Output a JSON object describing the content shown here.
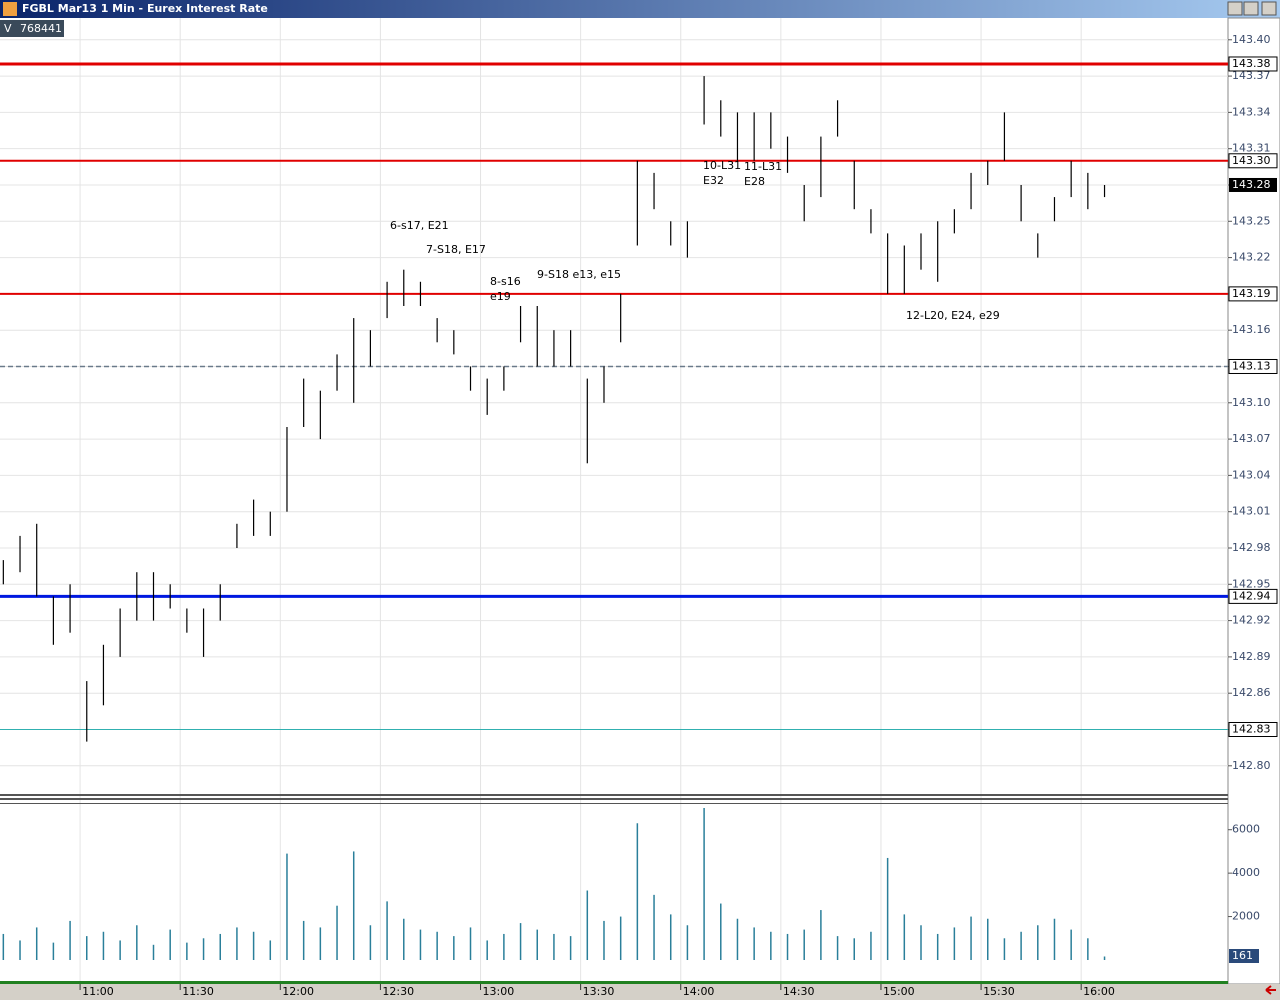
{
  "window_title": "FGBL Mar13 1 Min - Eurex Interest Rate",
  "header": {
    "label": "V",
    "value": 768441
  },
  "chart_data": [
    {
      "type": "ohlc",
      "x": [
        "10:37",
        "10:42",
        "10:47",
        "10:52",
        "10:57",
        "11:02",
        "11:07",
        "11:12",
        "11:17",
        "11:22",
        "11:27",
        "11:32",
        "11:37",
        "11:42",
        "11:47",
        "11:52",
        "11:57",
        "12:02",
        "12:07",
        "12:12",
        "12:17",
        "12:22",
        "12:27",
        "12:32",
        "12:37",
        "12:42",
        "12:47",
        "12:52",
        "12:57",
        "13:02",
        "13:07",
        "13:12",
        "13:17",
        "13:22",
        "13:27",
        "13:32",
        "13:37",
        "13:42",
        "13:47",
        "13:52",
        "13:57",
        "14:02",
        "14:07",
        "14:12",
        "14:17",
        "14:22",
        "14:27",
        "14:32",
        "14:37",
        "14:42",
        "14:47",
        "14:52",
        "14:57",
        "15:02",
        "15:07",
        "15:12",
        "15:17",
        "15:22",
        "15:27",
        "15:32",
        "15:37",
        "15:42",
        "15:47",
        "15:52",
        "15:57",
        "16:02",
        "16:07"
      ],
      "low": [
        142.95,
        142.96,
        142.94,
        142.9,
        142.91,
        142.82,
        142.85,
        142.89,
        142.92,
        142.92,
        142.93,
        142.91,
        142.89,
        142.92,
        142.98,
        142.99,
        142.99,
        143.01,
        143.08,
        143.07,
        143.11,
        143.1,
        143.13,
        143.17,
        143.18,
        143.18,
        143.15,
        143.14,
        143.11,
        143.09,
        143.11,
        143.15,
        143.13,
        143.13,
        143.13,
        143.05,
        143.1,
        143.15,
        143.23,
        143.26,
        143.23,
        143.22,
        143.33,
        143.32,
        143.3,
        143.3,
        143.31,
        143.29,
        143.25,
        143.27,
        143.32,
        143.26,
        143.24,
        143.19,
        143.19,
        143.21,
        143.2,
        143.24,
        143.26,
        143.28,
        143.3,
        143.25,
        143.22,
        143.25,
        143.27,
        143.26,
        143.27
      ],
      "high": [
        142.97,
        142.99,
        143.0,
        142.94,
        142.95,
        142.87,
        142.9,
        142.93,
        142.96,
        142.96,
        142.95,
        142.93,
        142.93,
        142.95,
        143.0,
        143.02,
        143.01,
        143.08,
        143.12,
        143.11,
        143.14,
        143.17,
        143.16,
        143.2,
        143.21,
        143.2,
        143.17,
        143.16,
        143.13,
        143.12,
        143.13,
        143.18,
        143.18,
        143.16,
        143.16,
        143.12,
        143.13,
        143.19,
        143.3,
        143.29,
        143.25,
        143.25,
        143.37,
        143.35,
        143.34,
        143.34,
        143.34,
        143.32,
        143.28,
        143.32,
        143.35,
        143.3,
        143.26,
        143.24,
        143.23,
        143.24,
        143.25,
        143.26,
        143.29,
        143.3,
        143.34,
        143.28,
        143.24,
        143.27,
        143.3,
        143.29,
        143.28
      ],
      "color": "#000000",
      "xlim": [
        "10:36",
        "16:44"
      ],
      "xticks": [
        "11:00",
        "11:30",
        "12:00",
        "12:30",
        "13:00",
        "13:30",
        "14:00",
        "14:30",
        "15:00",
        "15:30",
        "16:00"
      ],
      "ylim": [
        142.78,
        143.418
      ],
      "yticks": [
        {
          "value": 143.4,
          "label": "143.40"
        },
        {
          "value": 143.37,
          "label": "143.37"
        },
        {
          "value": 143.34,
          "label": "143.34"
        },
        {
          "value": 143.31,
          "label": "143.31"
        },
        {
          "value": 143.28,
          "label": "143.28"
        },
        {
          "value": 143.25,
          "label": "143.25"
        },
        {
          "value": 143.22,
          "label": "143.22"
        },
        {
          "value": 143.19,
          "label": "143.19"
        },
        {
          "value": 143.16,
          "label": "143.16"
        },
        {
          "value": 143.13,
          "label": "143.13"
        },
        {
          "value": 143.1,
          "label": "143.10"
        },
        {
          "value": 143.07,
          "label": "143.07"
        },
        {
          "value": 143.04,
          "label": "143.04"
        },
        {
          "value": 143.01,
          "label": "143.01"
        },
        {
          "value": 142.98,
          "label": "142.98"
        },
        {
          "value": 142.95,
          "label": "142.95"
        },
        {
          "value": 142.92,
          "label": "142.92"
        },
        {
          "value": 142.89,
          "label": "142.89"
        },
        {
          "value": 142.86,
          "label": "142.86"
        },
        {
          "value": 142.83,
          "label": "142.83"
        },
        {
          "value": 142.8,
          "label": "142.80"
        }
      ],
      "grid": true,
      "levels": [
        {
          "value": 143.38,
          "label": "143.38",
          "color": "#e00000",
          "style": "thick"
        },
        {
          "value": 143.3,
          "label": "143.30",
          "color": "#e00000",
          "style": "medium"
        },
        {
          "value": 143.19,
          "label": "143.19",
          "color": "#e00000",
          "style": "medium"
        },
        {
          "value": 143.13,
          "label": "143.13",
          "color": "#6a7a8a",
          "style": "dashed"
        },
        {
          "value": 142.94,
          "label": "142.94",
          "color": "#0018e0",
          "style": "thick"
        },
        {
          "value": 142.83,
          "label": "142.83",
          "color": "#30b0b0",
          "style": "thin"
        }
      ],
      "last_price": {
        "value": 143.28,
        "label": "143.28"
      },
      "annotations": [
        [
          "6-s17, E21"
        ],
        [
          "7-S18, E17"
        ],
        [
          "8-s16",
          "e19"
        ],
        [
          "9-S18 e13, e15"
        ],
        [
          "10-L31",
          "E32"
        ],
        [
          "11-L31",
          "E28"
        ],
        [
          "12-L20, E24, e29"
        ]
      ]
    },
    {
      "type": "volume",
      "values": [
        1200,
        900,
        1500,
        800,
        1800,
        1100,
        1300,
        900,
        1600,
        700,
        1400,
        800,
        1000,
        1200,
        1500,
        1300,
        900,
        4900,
        1800,
        1500,
        2500,
        5000,
        1600,
        2700,
        1900,
        1400,
        1300,
        1100,
        1500,
        900,
        1200,
        1700,
        1400,
        1200,
        1100,
        3200,
        1800,
        2000,
        6300,
        3000,
        2100,
        1600,
        7000,
        2600,
        1900,
        1500,
        1300,
        1200,
        1400,
        2300,
        1100,
        1000,
        1300,
        4700,
        2100,
        1600,
        1200,
        1500,
        2000,
        1900,
        1000,
        1300,
        1600,
        1900,
        1400,
        1000,
        161
      ],
      "color": "#2a7f9a",
      "ylim": [
        0,
        7000
      ],
      "yticks": [
        2000,
        4000,
        6000
      ]
    }
  ]
}
